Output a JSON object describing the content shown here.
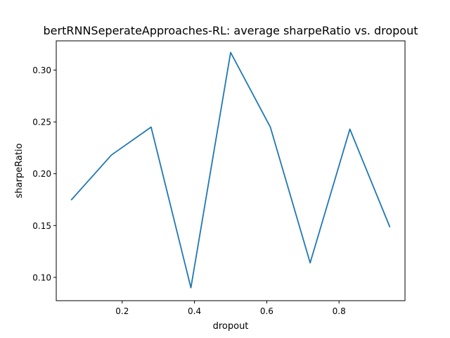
{
  "chart_data": {
    "type": "line",
    "title": "bertRNNSeperateApproaches-RL: average sharpeRatio vs. dropout",
    "xlabel": "dropout",
    "ylabel": "sharpeRatio",
    "xlim": [
      0.0175,
      0.9825
    ],
    "ylim": [
      0.0775,
      0.3282
    ],
    "xticks": [
      0.2,
      0.4,
      0.6,
      0.8
    ],
    "xtick_labels": [
      "0.2",
      "0.4",
      "0.6",
      "0.8"
    ],
    "yticks": [
      0.1,
      0.15,
      0.2,
      0.25,
      0.3
    ],
    "ytick_labels": [
      "0.10",
      "0.15",
      "0.20",
      "0.25",
      "0.30"
    ],
    "grid": false,
    "series": [
      {
        "color": "#1f77b4",
        "x": [
          0.06,
          0.17,
          0.28,
          0.39,
          0.5,
          0.61,
          0.72,
          0.83,
          0.94
        ],
        "y": [
          0.175,
          0.218,
          0.245,
          0.09,
          0.317,
          0.245,
          0.114,
          0.243,
          0.149
        ]
      }
    ]
  }
}
